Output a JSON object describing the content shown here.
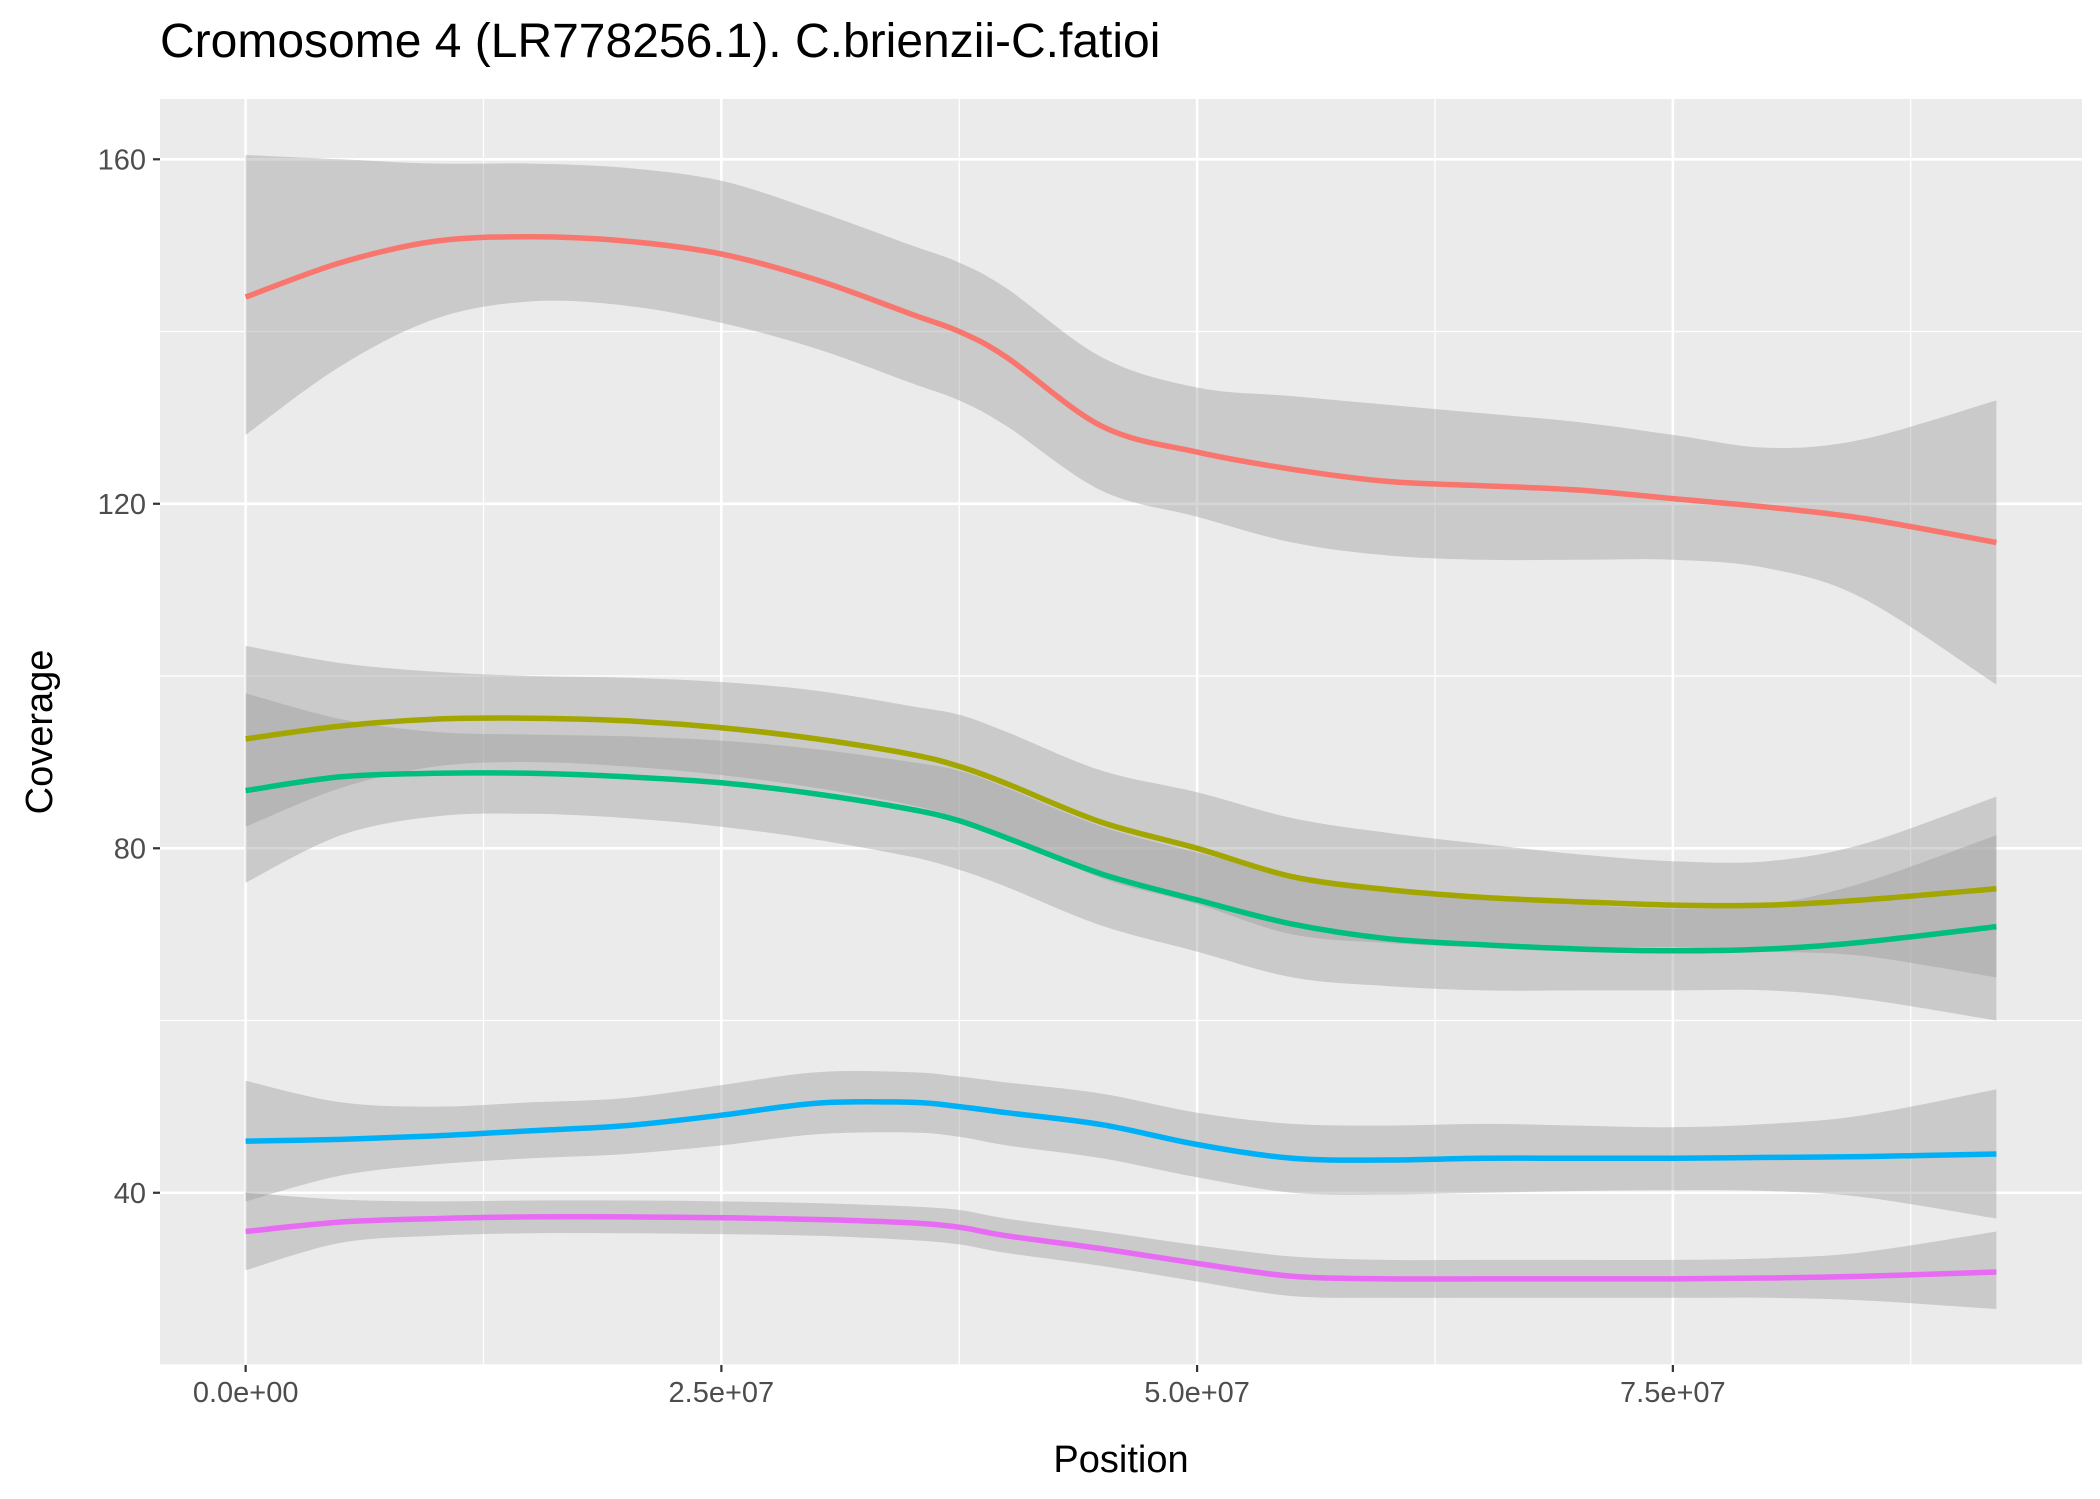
{
  "chart_data": {
    "type": "line",
    "title": "Cromosome 4 (LR778256.1). C.brienzii-C.fatioi",
    "xlabel": "Position",
    "ylabel": "Coverage",
    "xlim": [
      -4500000,
      96500000
    ],
    "ylim": [
      20,
      167
    ],
    "x_ticks": [
      0,
      25000000,
      50000000,
      75000000
    ],
    "x_tick_labels": [
      "0.0e+00",
      "2.5e+07",
      "5.0e+07",
      "7.5e+07"
    ],
    "y_ticks": [
      40,
      80,
      120,
      160
    ],
    "y_tick_labels": [
      "40",
      "80",
      "120",
      "160"
    ],
    "grid": true,
    "legend": "none",
    "x": [
      0,
      5000000,
      10000000,
      15000000,
      20000000,
      25000000,
      30000000,
      35000000,
      37500000,
      40000000,
      45000000,
      50000000,
      55000000,
      60000000,
      65000000,
      70000000,
      75000000,
      80000000,
      85000000,
      92000000
    ],
    "series": [
      {
        "color": "#F8766D",
        "values": [
          144,
          148,
          150.5,
          151,
          150.5,
          149,
          146,
          142,
          140,
          137,
          129,
          126,
          124,
          122.6,
          122.1,
          121.6,
          120.6,
          119.6,
          118.3,
          115.5
        ],
        "lower": [
          128,
          136,
          141.5,
          143.5,
          143,
          141,
          138,
          134,
          132,
          129,
          121.5,
          118.5,
          115.5,
          114,
          113.5,
          113.5,
          113.5,
          112.5,
          109,
          99
        ],
        "upper": [
          160.5,
          160,
          159.5,
          159.5,
          159,
          157.5,
          154,
          150,
          148,
          145,
          137,
          133.5,
          132.5,
          131.5,
          130.5,
          129.5,
          128,
          126.5,
          127.5,
          132
        ]
      },
      {
        "color": "#A3A500",
        "values": [
          92.7,
          94.2,
          95,
          95.1,
          94.8,
          94,
          92.7,
          90.9,
          89.5,
          87.5,
          83,
          80,
          76.7,
          75.2,
          74.3,
          73.8,
          73.4,
          73.4,
          74,
          75.3
        ],
        "lower": [
          82.5,
          87,
          89.5,
          90,
          89.5,
          88.5,
          87,
          85,
          83.5,
          81.5,
          76.5,
          73.5,
          70,
          69,
          68.5,
          68.5,
          68.5,
          68,
          67.5,
          65
        ],
        "upper": [
          103.5,
          101.5,
          100.5,
          100,
          99.8,
          99.3,
          98.3,
          96.5,
          95.5,
          93.5,
          89,
          86.5,
          83.5,
          81.8,
          80.5,
          79.3,
          78.5,
          78.5,
          80.5,
          86
        ]
      },
      {
        "color": "#00BF7D",
        "values": [
          86.7,
          88.3,
          88.7,
          88.7,
          88.3,
          87.6,
          86.3,
          84.5,
          83.2,
          81.2,
          77,
          74,
          71.2,
          69.5,
          68.8,
          68.3,
          68.1,
          68.3,
          69.1,
          70.9
        ],
        "lower": [
          76,
          81.5,
          83.7,
          84,
          83.5,
          82.5,
          81,
          79,
          77.5,
          75.5,
          71,
          68,
          65,
          64,
          63.5,
          63.5,
          63.5,
          63.5,
          62.5,
          60
        ],
        "upper": [
          98,
          95,
          93.5,
          93.2,
          93,
          92.5,
          91.5,
          90,
          89,
          87,
          82.5,
          79.5,
          77,
          75.5,
          74.5,
          73.5,
          73,
          73.5,
          76,
          81.5
        ]
      },
      {
        "color": "#00B0F6",
        "values": [
          46,
          46.2,
          46.6,
          47.2,
          47.8,
          49,
          50.4,
          50.5,
          50,
          49.3,
          47.9,
          45.6,
          44,
          43.8,
          44,
          44,
          44,
          44.1,
          44.2,
          44.5
        ],
        "lower": [
          39,
          42,
          43.3,
          44,
          44.5,
          45.5,
          46.8,
          47,
          46.5,
          45.5,
          44,
          41.8,
          40,
          39.8,
          40,
          40.2,
          40.3,
          40.2,
          39.5,
          37
        ],
        "upper": [
          53,
          50.5,
          50,
          50.5,
          51,
          52.5,
          54,
          54,
          53.5,
          52.8,
          51.5,
          49.3,
          48,
          47.8,
          48,
          47.8,
          47.6,
          48,
          49,
          52
        ]
      },
      {
        "color": "#E76BF3",
        "values": [
          35.5,
          36.6,
          37,
          37.2,
          37.2,
          37.1,
          36.9,
          36.5,
          36,
          35,
          33.5,
          31.8,
          30.3,
          30,
          30,
          30,
          30,
          30.1,
          30.3,
          30.8
        ],
        "lower": [
          31,
          34.2,
          35,
          35.3,
          35.3,
          35.2,
          35,
          34.5,
          34,
          33,
          31.5,
          29.7,
          28,
          27.8,
          27.8,
          27.8,
          27.8,
          27.8,
          27.5,
          26.5
        ],
        "upper": [
          40,
          39.2,
          39,
          39.1,
          39.1,
          39,
          38.8,
          38.4,
          38,
          37,
          35.5,
          33.9,
          32.6,
          32.2,
          32.2,
          32.2,
          32.2,
          32.4,
          33.1,
          35.5
        ]
      }
    ]
  }
}
